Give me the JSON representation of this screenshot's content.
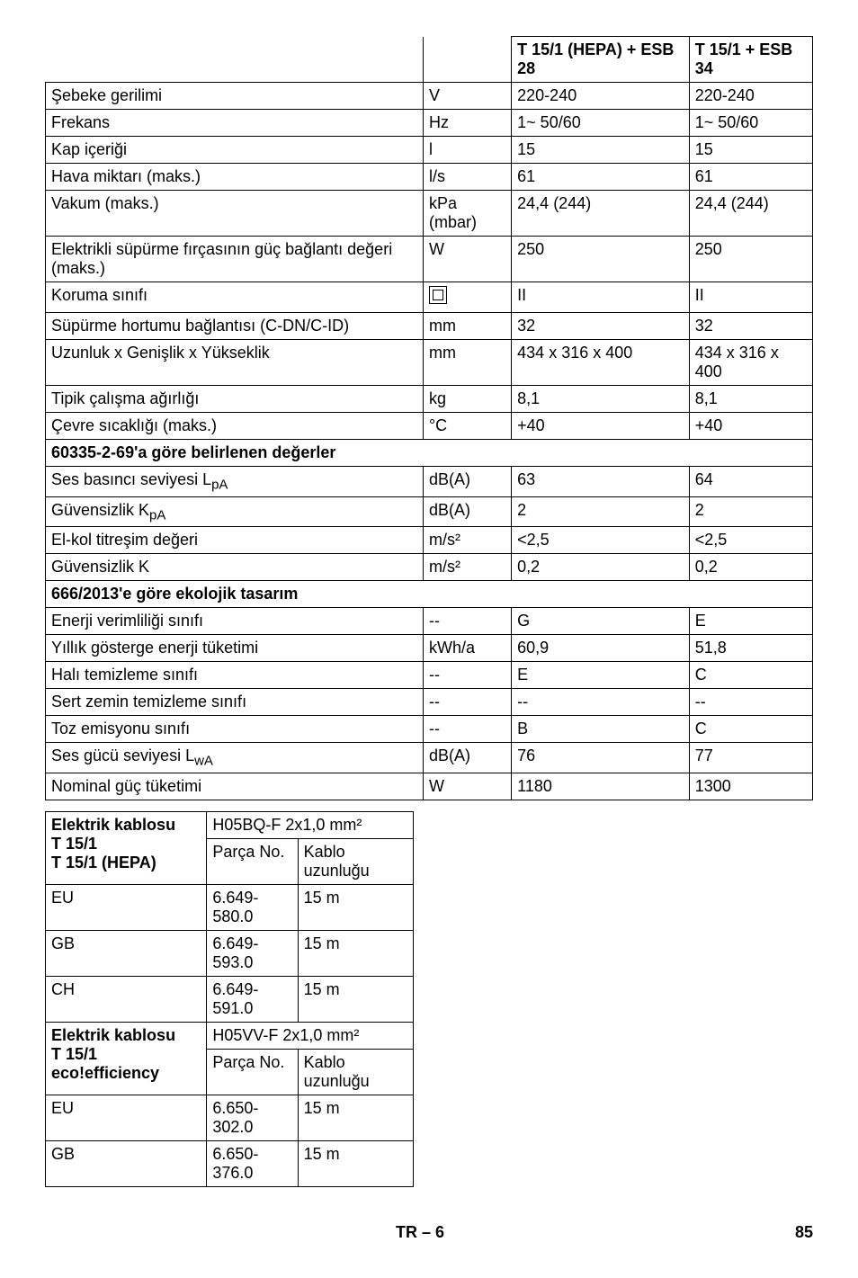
{
  "main_table": {
    "col_header_1": "T 15/1 (HEPA) + ESB 28",
    "col_header_2": "T 15/1 + ESB 34",
    "rows": [
      {
        "label": "Şebeke gerilimi",
        "unit": "V",
        "v1": "220-240",
        "v2": "220-240"
      },
      {
        "label": "Frekans",
        "unit": "Hz",
        "v1": "1~ 50/60",
        "v2": "1~ 50/60"
      },
      {
        "label": "Kap içeriği",
        "unit": "l",
        "v1": "15",
        "v2": "15"
      },
      {
        "label": "Hava miktarı (maks.)",
        "unit": "l/s",
        "v1": "61",
        "v2": "61"
      },
      {
        "label": "Vakum (maks.)",
        "unit": "kPa (mbar)",
        "v1": "24,4 (244)",
        "v2": "24,4 (244)"
      },
      {
        "label": "Elektrikli süpürme fırçasının güç bağlantı değeri (maks.)",
        "unit": "W",
        "v1": "250",
        "v2": "250"
      },
      {
        "label": "Koruma sınıfı",
        "unit": "[icon]",
        "v1": "II",
        "v2": "II"
      },
      {
        "label": "Süpürme hortumu bağlantısı (C-DN/C-ID)",
        "unit": "mm",
        "v1": "32",
        "v2": "32"
      },
      {
        "label": "Uzunluk x Genişlik x Yükseklik",
        "unit": "mm",
        "v1": "434 x 316 x 400",
        "v2": "434 x 316 x 400"
      },
      {
        "label": "Tipik çalışma ağırlığı",
        "unit": "kg",
        "v1": "8,1",
        "v2": "8,1"
      },
      {
        "label": "Çevre sıcaklığı (maks.)",
        "unit": "°C",
        "v1": "+40",
        "v2": "+40"
      }
    ],
    "section1_title": "60335-2-69'a göre belirlenen değerler",
    "section1_rows": [
      {
        "label": "Ses basıncı seviyesi L",
        "sub": "pA",
        "unit": "dB(A)",
        "v1": "63",
        "v2": "64"
      },
      {
        "label": "Güvensizlik K",
        "sub": "pA",
        "unit": "dB(A)",
        "v1": "2",
        "v2": "2"
      },
      {
        "label": "El-kol titreşim değeri",
        "unit": "m/s²",
        "v1": "<2,5",
        "v2": "<2,5"
      },
      {
        "label": "Güvensizlik K",
        "unit": "m/s²",
        "v1": "0,2",
        "v2": "0,2"
      }
    ],
    "section2_title": "666/2013'e göre ekolojik tasarım",
    "section2_rows": [
      {
        "label": "Enerji verimliliği sınıfı",
        "unit": "--",
        "v1": "G",
        "v2": "E"
      },
      {
        "label": "Yıllık gösterge enerji tüketimi",
        "unit": "kWh/a",
        "v1": "60,9",
        "v2": "51,8"
      },
      {
        "label": "Halı temizleme sınıfı",
        "unit": "--",
        "v1": "E",
        "v2": "C"
      },
      {
        "label": "Sert zemin temizleme sınıfı",
        "unit": "--",
        "v1": "--",
        "v2": "--"
      },
      {
        "label": "Toz emisyonu sınıfı",
        "unit": "--",
        "v1": "B",
        "v2": "C"
      },
      {
        "label": "Ses gücü seviyesi L",
        "sub": "wA",
        "unit": "dB(A)",
        "v1": "76",
        "v2": "77"
      },
      {
        "label": "Nominal güç tüketimi",
        "unit": "W",
        "v1": "1180",
        "v2": "1300"
      }
    ]
  },
  "cable_table": {
    "group1_title_label": "Elektrik kablosu",
    "group1_title_models": "T 15/1\nT 15/1 (HEPA)",
    "group1_spec": "H05BQ-F 2x1,0 mm²",
    "parca_no_label": "Parça No.",
    "kablo_label": "Kablo uzunluğu",
    "group1_rows": [
      {
        "c": "EU",
        "pn": "6.649-580.0",
        "len": "15 m"
      },
      {
        "c": "GB",
        "pn": "6.649-593.0",
        "len": "15 m"
      },
      {
        "c": "CH",
        "pn": "6.649-591.0",
        "len": "15 m"
      }
    ],
    "group2_title_models": "T 15/1 eco!efficiency",
    "group2_spec": "H05VV-F 2x1,0 mm²",
    "group2_rows": [
      {
        "c": "EU",
        "pn": "6.650-302.0",
        "len": "15 m"
      },
      {
        "c": "GB",
        "pn": "6.650-376.0",
        "len": "15 m"
      }
    ]
  },
  "footer": {
    "page_code": "TR – 6",
    "page_num": "85"
  }
}
